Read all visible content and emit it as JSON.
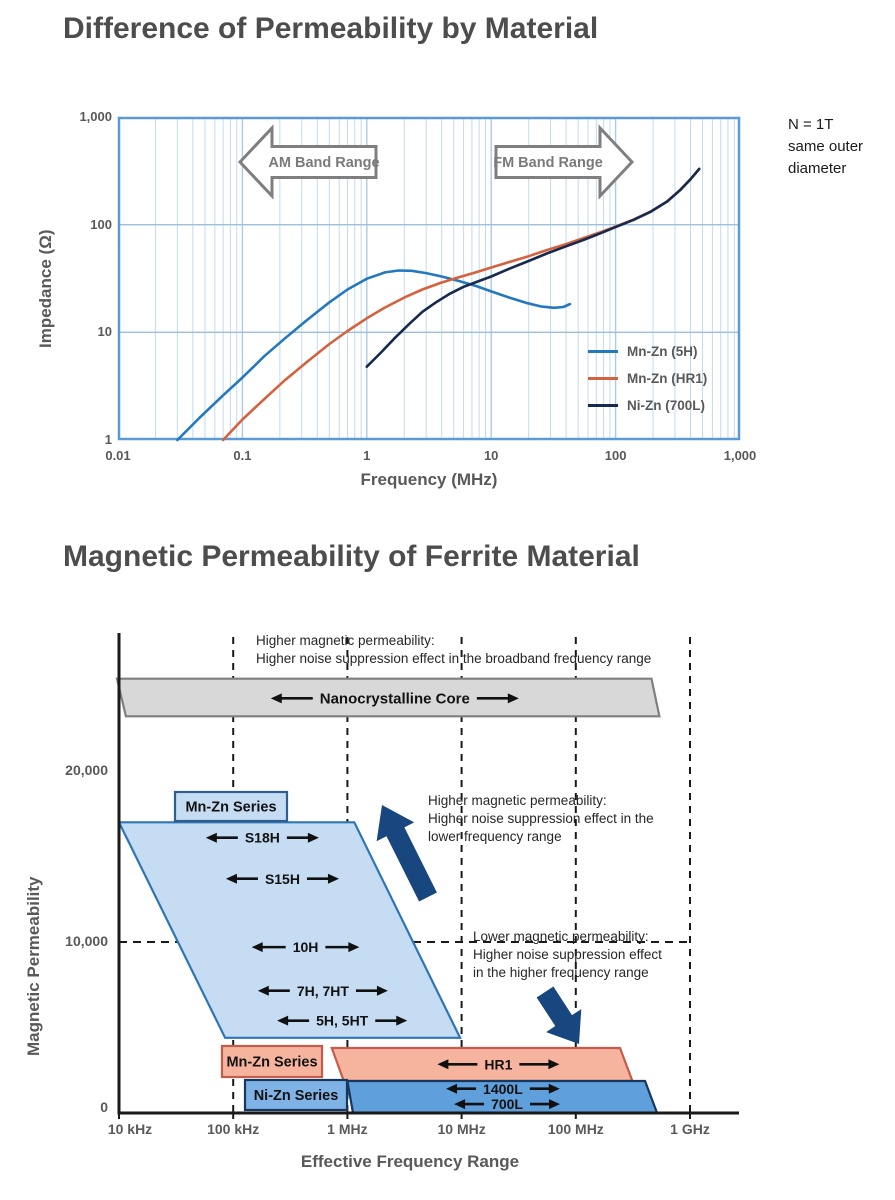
{
  "page": {
    "title1": "Difference of Permeability by Material",
    "title2": "Magnetic Permeability of Ferrite Material"
  },
  "chart_data": [
    {
      "type": "line",
      "title": "Difference of Permeability by Material",
      "xlabel": "Frequency (MHz)",
      "ylabel": "Impedance (Ω)",
      "x_scale": "log",
      "y_scale": "log",
      "xlim": [
        0.01,
        1000
      ],
      "ylim": [
        1,
        1000
      ],
      "x_ticks": [
        "0.01",
        "0.1",
        "1",
        "10",
        "100",
        "1,000"
      ],
      "x_tick_values": [
        0.01,
        0.1,
        1,
        10,
        100,
        1000
      ],
      "y_ticks": [
        "1,000",
        "100",
        "10",
        "1"
      ],
      "y_tick_values": [
        1000,
        100,
        10,
        1
      ],
      "grid": "log minor vertical, decade horizontal",
      "legend_position": "inside lower right",
      "annotations": {
        "am_band": "AM Band Range",
        "fm_band": "FM Band Range",
        "side_note": "N = 1T\nsame outer\ndiameter"
      },
      "series": [
        {
          "name": "Mn-Zn (5H)",
          "color": "#2478C0",
          "points": [
            [
              0.03,
              1
            ],
            [
              0.045,
              1.6
            ],
            [
              0.07,
              2.6
            ],
            [
              0.1,
              3.8
            ],
            [
              0.15,
              6
            ],
            [
              0.22,
              8.8
            ],
            [
              0.33,
              13
            ],
            [
              0.5,
              19
            ],
            [
              0.7,
              25
            ],
            [
              1,
              31.5
            ],
            [
              1.4,
              36
            ],
            [
              1.8,
              37.5
            ],
            [
              2.3,
              37.3
            ],
            [
              3,
              35.5
            ],
            [
              4,
              33
            ],
            [
              5.5,
              30
            ],
            [
              7.5,
              27
            ],
            [
              10,
              24
            ],
            [
              14,
              21
            ],
            [
              19,
              18.8
            ],
            [
              25,
              17.4
            ],
            [
              32,
              16.9
            ],
            [
              38,
              17.2
            ],
            [
              43,
              18.3
            ]
          ]
        },
        {
          "name": "Mn-Zn (HR1)",
          "color": "#D4623C",
          "points": [
            [
              0.07,
              1
            ],
            [
              0.1,
              1.55
            ],
            [
              0.15,
              2.4
            ],
            [
              0.22,
              3.6
            ],
            [
              0.33,
              5.3
            ],
            [
              0.5,
              7.8
            ],
            [
              0.7,
              10.3
            ],
            [
              1,
              13.5
            ],
            [
              1.4,
              17
            ],
            [
              2,
              21
            ],
            [
              2.8,
              25
            ],
            [
              4,
              29
            ],
            [
              5.5,
              32.5
            ],
            [
              7.5,
              36
            ],
            [
              10,
              40
            ],
            [
              14,
              45
            ],
            [
              20,
              51
            ],
            [
              28,
              58
            ],
            [
              40,
              66
            ],
            [
              55,
              75
            ],
            [
              75,
              85
            ],
            [
              100,
              96
            ],
            [
              140,
              112
            ],
            [
              190,
              132
            ],
            [
              260,
              165
            ],
            [
              330,
              210
            ],
            [
              400,
              265
            ],
            [
              470,
              330
            ]
          ]
        },
        {
          "name": "Ni-Zn (700L)",
          "color": "#16294F",
          "points": [
            [
              1,
              4.8
            ],
            [
              1.3,
              6.5
            ],
            [
              1.7,
              9
            ],
            [
              2.2,
              12
            ],
            [
              2.8,
              15.5
            ],
            [
              3.6,
              19
            ],
            [
              4.7,
              23
            ],
            [
              6,
              26.5
            ],
            [
              8,
              30
            ],
            [
              10,
              33
            ],
            [
              14,
              39
            ],
            [
              20,
              46
            ],
            [
              28,
              54
            ],
            [
              40,
              63
            ],
            [
              55,
              72
            ],
            [
              75,
              83
            ],
            [
              100,
              95
            ],
            [
              140,
              111
            ],
            [
              190,
              131
            ],
            [
              260,
              164
            ],
            [
              330,
              209
            ],
            [
              400,
              264
            ],
            [
              470,
              329
            ]
          ]
        }
      ]
    },
    {
      "type": "diagram",
      "title": "Magnetic Permeability of Ferrite Material",
      "xlabel": "Effective Frequency Range",
      "ylabel": "Magnetic Permeability",
      "x_scale": "log",
      "y_scale": "linear",
      "x_ticks": [
        "10 kHz",
        "100 kHz",
        "1 MHz",
        "10 MHz",
        "100 MHz",
        "1 GHz"
      ],
      "x_tick_values_mhz": [
        0.01,
        0.1,
        1,
        10,
        100,
        1000
      ],
      "y_ticks": [
        "20,000",
        "10,000",
        "0"
      ],
      "y_tick_values": [
        20000,
        10000,
        0
      ],
      "dashed_vline_values_mhz": [
        0.1,
        1,
        10,
        100,
        1000
      ],
      "dashed_hline_perm": 10000,
      "bands": [
        {
          "id": "nanocrystalline-band",
          "fill": "#D8D8D8",
          "stroke": "#7F7F7F",
          "polygon": [
            [
              0.0096,
              25400
            ],
            [
              460,
              25400
            ],
            [
              540,
              23200
            ],
            [
              0.0115,
              23200
            ]
          ],
          "labels": [
            {
              "text": "Nanocrystalline Core",
              "freq": 2.6,
              "perm": 24250,
              "size": 15,
              "arrow": 42
            }
          ]
        },
        {
          "id": "mnzn-high-permeability-band",
          "fill": "#C5DCF2",
          "stroke": "#2E75B6",
          "polygon": [
            [
              0.01,
              17000
            ],
            [
              1.15,
              17000
            ],
            [
              9.7,
              4400
            ],
            [
              0.085,
              4400
            ]
          ],
          "labels": [
            {
              "text": "S18H",
              "freq": 0.18,
              "perm": 16100,
              "size": 14,
              "arrow": 32
            },
            {
              "text": "S15H",
              "freq": 0.27,
              "perm": 13700,
              "size": 14,
              "arrow": 32
            },
            {
              "text": "10H",
              "freq": 0.43,
              "perm": 9700,
              "size": 14,
              "arrow": 34
            },
            {
              "text": "7H, 7HT",
              "freq": 0.61,
              "perm": 7150,
              "size": 14,
              "arrow": 32
            },
            {
              "text": "5H, 5HT",
              "freq": 0.9,
              "perm": 5400,
              "size": 14,
              "arrow": 32
            }
          ]
        },
        {
          "id": "mnzn-hr1-band",
          "fill": "#F6B49E",
          "stroke": "#C65B4B",
          "polygon": [
            [
              0.73,
              3800
            ],
            [
              244,
              3800
            ],
            [
              313,
              1870
            ],
            [
              0.93,
              1870
            ]
          ],
          "labels": [
            {
              "text": "HR1",
              "freq": 21,
              "perm": 2850,
              "size": 14,
              "arrow": 40
            }
          ]
        },
        {
          "id": "nizn-band",
          "fill": "#5FA0DC",
          "stroke": "#17375E",
          "polygon": [
            [
              1.0,
              1870
            ],
            [
              404,
              1870
            ],
            [
              515,
              0
            ],
            [
              1.12,
              0
            ]
          ],
          "labels": [
            {
              "text": "1400L",
              "freq": 23,
              "perm": 1420,
              "size": 14,
              "arrow": 30
            },
            {
              "text": "700L",
              "freq": 25,
              "perm": 520,
              "size": 14,
              "arrow": 30
            }
          ]
        }
      ],
      "series_boxes": [
        {
          "id": "mnzn-series-top",
          "text": "Mn-Zn Series",
          "fill": "#C5DCF2",
          "stroke": "#2E5F8F"
        },
        {
          "id": "mnzn-series-bottom",
          "text": "Mn-Zn Series",
          "fill": "#F6B49E",
          "stroke": "#C65B4B"
        },
        {
          "id": "nizn-series",
          "text": "Ni-Zn Series",
          "fill": "#7FB2E5",
          "stroke": "#17375E"
        }
      ],
      "notes": [
        {
          "text": "Higher magnetic permeability:\nHigher noise suppression effect in the broadband frequency range"
        },
        {
          "text": "Higher magnetic permeability:\nHigher noise suppression effect in the\nlower frequency range"
        },
        {
          "text": "Lower magnetic permeability:\nHigher noise suppression effect\nin the higher frequency range"
        }
      ],
      "arrow_color": "#17477E"
    }
  ]
}
